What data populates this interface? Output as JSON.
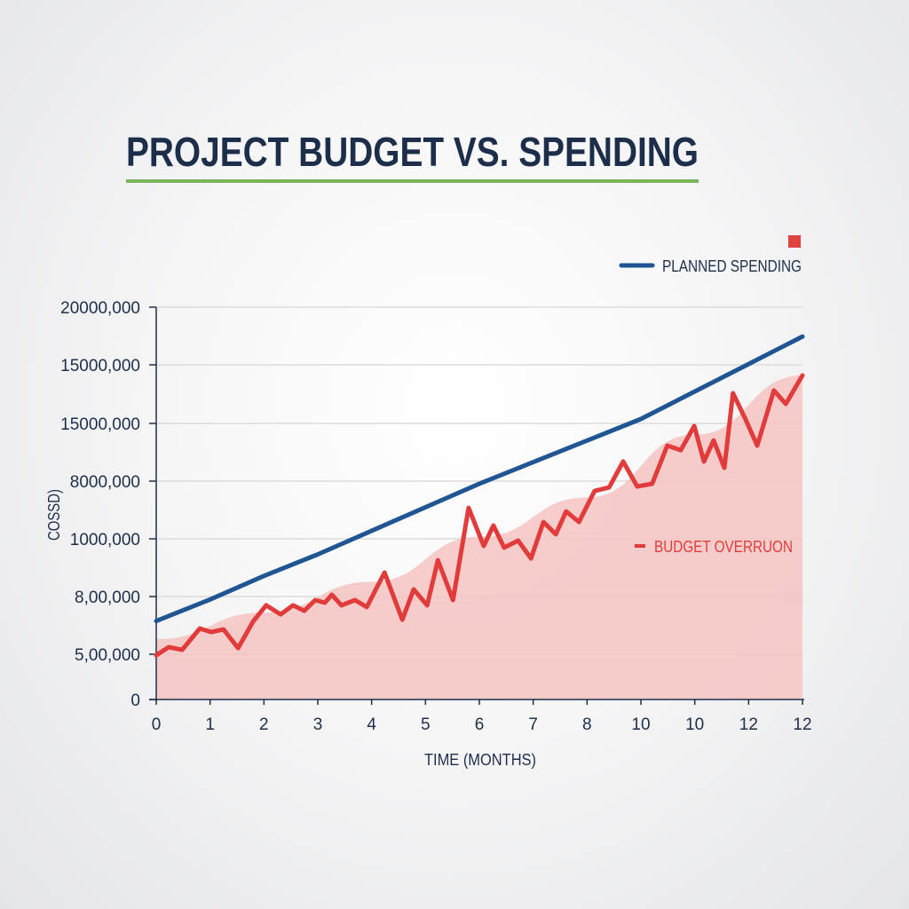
{
  "chart_data": {
    "type": "line",
    "title": "PROJECT BUDGET VS. SPENDING",
    "xlabel": "TIME (MONTHS)",
    "ylabel": "COSSD)",
    "x_tick_labels": [
      "0",
      "1",
      "2",
      "3",
      "4",
      "5",
      "6",
      "7",
      "8",
      "10",
      "10",
      "12",
      "12"
    ],
    "y_tick_labels": [
      "0",
      "5,00,000",
      "8,00,000",
      "1000,000",
      "8000,000",
      "15000,000",
      "15000,000",
      "20000,000"
    ],
    "xlim": [
      0,
      12
    ],
    "ylim": [
      0,
      20000000
    ],
    "grid": true,
    "legend_position": "top-right",
    "colors": {
      "planned": "#1f5592",
      "actual": "#e23b3b",
      "area": "#f4c4c2",
      "title": "#1d2e4a",
      "underline": "#7ab55c"
    },
    "series": [
      {
        "name": "PLANNED SPENDING",
        "x": [
          0,
          1,
          2,
          3,
          4,
          5,
          6,
          7,
          8,
          9,
          10,
          11,
          12
        ],
        "y": [
          4000000,
          5100000,
          6300000,
          7400000,
          8600000,
          9800000,
          11000000,
          12100000,
          13200000,
          14300000,
          15700000,
          17100000,
          18500000
        ]
      },
      {
        "name": "",
        "x": [
          0,
          0.23,
          0.48,
          0.81,
          1.02,
          1.25,
          1.52,
          1.8,
          2.04,
          2.31,
          2.54,
          2.75,
          2.95,
          3.13,
          3.26,
          3.44,
          3.69,
          3.91,
          4.24,
          4.57,
          4.78,
          5.03,
          5.23,
          5.51,
          5.8,
          6.08,
          6.26,
          6.46,
          6.72,
          6.96,
          7.19,
          7.42,
          7.61,
          7.85,
          8.14,
          8.41,
          8.67,
          8.93,
          9.21,
          9.49,
          9.74,
          9.99,
          10.17,
          10.35,
          10.55,
          10.71,
          10.94,
          11.16,
          11.47,
          11.69,
          12
        ],
        "y": [
          2260000,
          2670000,
          2530000,
          3620000,
          3440000,
          3570000,
          2620000,
          3980000,
          4800000,
          4340000,
          4800000,
          4520000,
          5070000,
          4930000,
          5340000,
          4800000,
          5070000,
          4710000,
          6470000,
          4070000,
          5610000,
          4800000,
          7100000,
          5070000,
          9770000,
          7830000,
          8870000,
          7740000,
          8100000,
          7190000,
          9050000,
          8420000,
          9590000,
          9050000,
          10630000,
          10810000,
          12130000,
          10860000,
          11000000,
          12940000,
          12710000,
          13940000,
          12130000,
          13210000,
          11810000,
          15610000,
          14300000,
          12940000,
          15750000,
          15070000,
          16520000
        ]
      },
      {
        "name": "BUDGET OVERRUON",
        "type": "area",
        "x": [
          0,
          2,
          4,
          6,
          8,
          10,
          12
        ],
        "y": [
          3080000,
          4430000,
          6000000,
          8300000,
          10300000,
          13500000,
          16520000
        ]
      }
    ]
  }
}
